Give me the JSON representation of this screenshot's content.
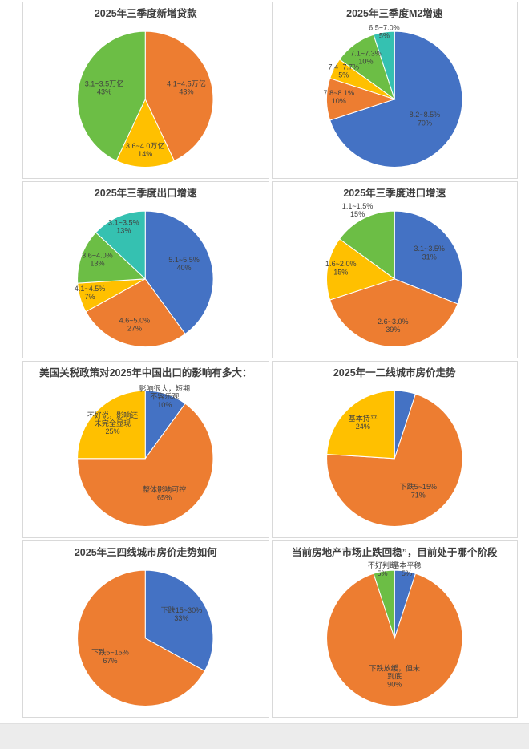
{
  "page": {
    "background": "#ffffff",
    "footer_color": "#ececec",
    "panel_border": "#d9d9d9",
    "label_color": "#404040"
  },
  "palette": {
    "blue": "#4472C4",
    "orange": "#ED7D31",
    "yellow": "#FFC000",
    "green": "#6CBE45",
    "teal": "#35C1B1"
  },
  "chart_data": [
    {
      "type": "pie",
      "title": "2025年三季度新增贷款",
      "legend": "none",
      "labels": "on-slice",
      "slices": [
        {
          "name": "4.1~4.5万亿",
          "pct": 43,
          "color": "#ED7D31",
          "lr": 0.62
        },
        {
          "name": "3.6~4.0万亿",
          "pct": 14,
          "color": "#FFC000",
          "lr": 0.78
        },
        {
          "name": "3.1~3.5万亿",
          "pct": 43,
          "color": "#6CBE45",
          "lr": 0.62
        }
      ]
    },
    {
      "type": "pie",
      "title": "2025年三季度M2增速",
      "legend": "none",
      "labels": "on-slice",
      "slices": [
        {
          "name": "8.2~8.5%",
          "pct": 70,
          "color": "#4472C4",
          "lr": 0.55
        },
        {
          "name": "7.8~8.1%",
          "pct": 10,
          "color": "#ED7D31",
          "lr": 0.82
        },
        {
          "name": "7.4~7.7%",
          "pct": 5,
          "color": "#FFC000",
          "lr": 0.84
        },
        {
          "name": "7.1~7.3%",
          "pct": 10,
          "color": "#6CBE45",
          "lr": 0.72
        },
        {
          "name": "6.5~7.0%",
          "pct": 5,
          "color": "#35C1B1",
          "lr": 0.97
        }
      ]
    },
    {
      "type": "pie",
      "title": "2025年三季度出口增速",
      "legend": "none",
      "labels": "on-slice",
      "slices": [
        {
          "name": "5.1~5.5%",
          "pct": 40,
          "color": "#4472C4",
          "lr": 0.6
        },
        {
          "name": "4.6~5.0%",
          "pct": 27,
          "color": "#ED7D31",
          "lr": 0.72
        },
        {
          "name": "4.1~4.5%",
          "pct": 7,
          "color": "#FFC000",
          "lr": 0.85
        },
        {
          "name": "3.6~4.0%",
          "pct": 13,
          "color": "#6CBE45",
          "lr": 0.75
        },
        {
          "name": "3.1~3.5%",
          "pct": 13,
          "color": "#35C1B1",
          "lr": 0.8
        }
      ]
    },
    {
      "type": "pie",
      "title": "2025年三季度进口增速",
      "legend": "none",
      "labels": "on-slice",
      "slices": [
        {
          "name": "3.1~3.5%",
          "pct": 31,
          "color": "#4472C4",
          "lr": 0.62
        },
        {
          "name": "2.6~3.0%",
          "pct": 39,
          "color": "#ED7D31",
          "lr": 0.72
        },
        {
          "name": "1.6~2.0%",
          "pct": 15,
          "color": "#FFC000",
          "lr": 0.8
        },
        {
          "name": "1.1~1.5%",
          "pct": 15,
          "color": "#6CBE45",
          "lr": 1.2
        }
      ]
    },
    {
      "type": "pie",
      "title": "美国关税政策对2025年中国出口的影响有多大：",
      "legend": "none",
      "labels": "on-slice",
      "slices": [
        {
          "name": "影响很大，短期\n不容乐观",
          "pct": 10,
          "color": "#4472C4",
          "lr": 0.92
        },
        {
          "name": "整体影响可控",
          "pct": 65,
          "color": "#ED7D31",
          "lr": 0.62
        },
        {
          "name": "不好说，影响还\n未完全显现",
          "pct": 25,
          "color": "#FFC000",
          "lr": 0.68
        }
      ]
    },
    {
      "type": "pie",
      "title": "2025年一二线城市房价走势",
      "legend": "none",
      "labels": "on-slice",
      "slices": [
        {
          "name": "",
          "pct": 5,
          "color": "#4472C4",
          "lr": 0.6
        },
        {
          "name": "下跌5~15%",
          "pct": 71,
          "color": "#ED7D31",
          "lr": 0.62
        },
        {
          "name": "基本持平",
          "pct": 24,
          "color": "#FFC000",
          "lr": 0.68
        }
      ]
    },
    {
      "type": "pie",
      "title": "2025年三四线城市房价走势如何",
      "legend": "none",
      "labels": "on-slice",
      "slices": [
        {
          "name": "下跌15~30%",
          "pct": 33,
          "color": "#4472C4",
          "lr": 0.62
        },
        {
          "name": "下跌5~15%",
          "pct": 67,
          "color": "#ED7D31",
          "lr": 0.6
        }
      ]
    },
    {
      "type": "pie",
      "title": "当前房地产市场止跌回稳”，目前处于哪个阶段",
      "legend": "none",
      "labels": "on-slice",
      "slices": [
        {
          "name": "基本平稳",
          "pct": 5,
          "color": "#4472C4",
          "lr": 1.15
        },
        {
          "name": "下跌放缓，但未\n到底",
          "pct": 90,
          "color": "#ED7D31",
          "lr": 0.6
        },
        {
          "name": "不好判断",
          "pct": 5,
          "color": "#6CBE45",
          "lr": 1.15
        }
      ]
    }
  ]
}
